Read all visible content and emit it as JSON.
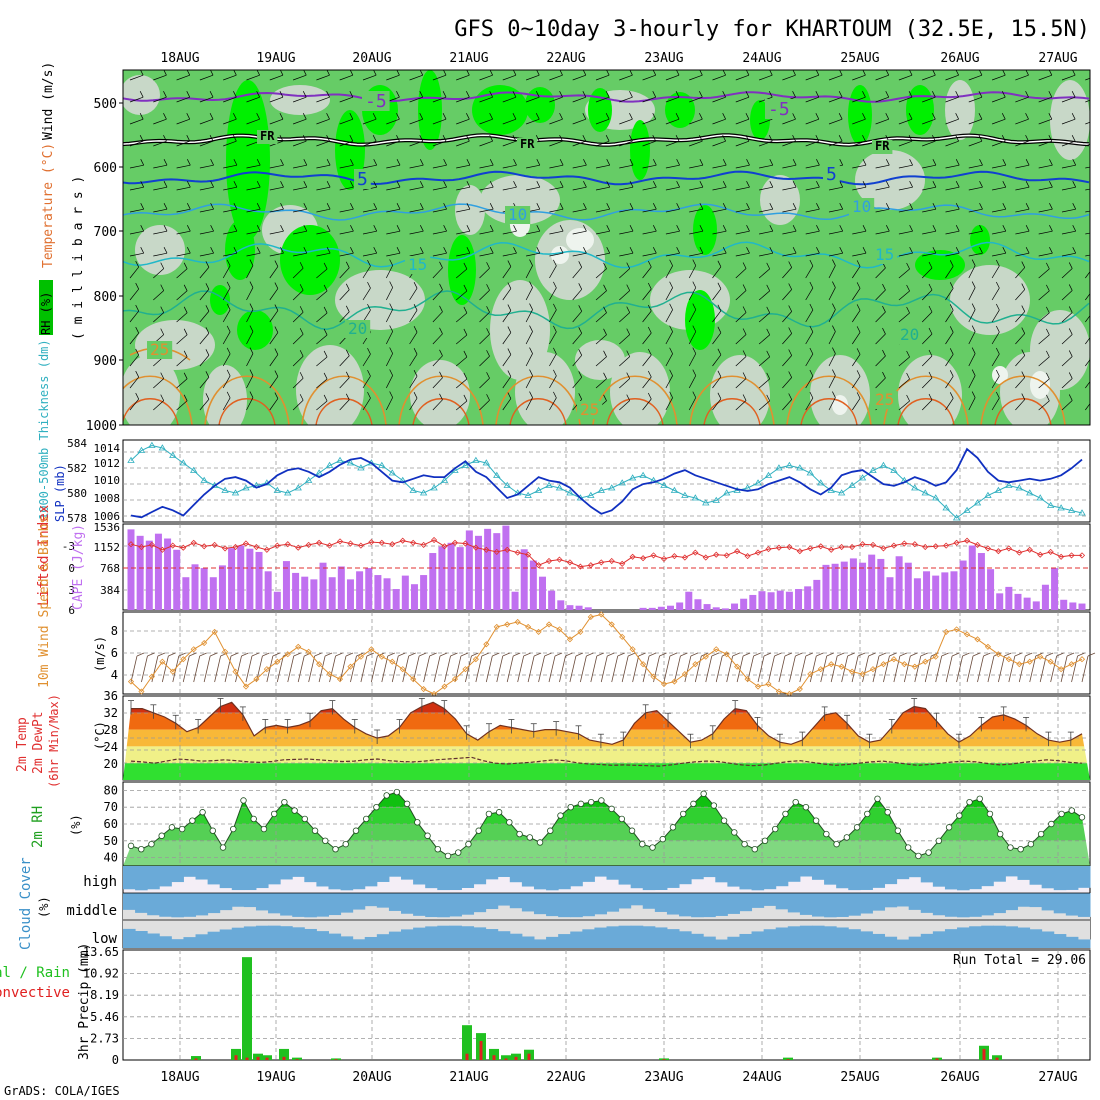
{
  "title": "GFS 0~10day 3-hourly for KHARTOUM (32.5E, 15.5N)",
  "credit": "GrADS: COLA/IGES",
  "run_total_label": "Run Total = 29.06",
  "date_labels": [
    "18AUG",
    "19AUG",
    "20AUG",
    "21AUG",
    "22AUG",
    "23AUG",
    "24AUG",
    "25AUG",
    "26AUG",
    "27AUG"
  ],
  "colors": {
    "rh_green": "#00f000",
    "rh_mid": "#66cc66",
    "rh_light": "#c8d8c8",
    "slp": "#1030c0",
    "thickness": "#30b0c0",
    "lifted_index": "#e03030",
    "cape": "#c070f0",
    "wind": "#e09030",
    "cloud": "#6aaad8",
    "precip_total": "#20c020",
    "precip_conv": "#e02020"
  },
  "panels": {
    "upper": {
      "ylabel_rh": "RH (%)",
      "ylabel_temp": "Temperature (°C)",
      "ylabel_wind": "Wind (m/s)",
      "ylabel_p": "( m i l l i b a r s )",
      "pressure_levels": [
        "500",
        "600",
        "700",
        "800",
        "900",
        "1000"
      ],
      "contour_labels": [
        {
          "text": "-5"
        },
        {
          "text": "-5"
        },
        {
          "text": "FR"
        },
        {
          "text": "FR"
        },
        {
          "text": "FR"
        },
        {
          "text": "5"
        },
        {
          "text": "5"
        },
        {
          "text": "10"
        },
        {
          "text": "10"
        },
        {
          "text": "15"
        },
        {
          "text": "15"
        },
        {
          "text": "20"
        },
        {
          "text": "20"
        },
        {
          "text": "25"
        },
        {
          "text": "25"
        },
        {
          "text": "25"
        }
      ]
    },
    "slp": {
      "ylabel_thk": "1000-500mb Thickness (dm)",
      "ylabel_slp": "SLP (mb)",
      "left_ticks": [
        "584",
        "582",
        "580",
        "578"
      ],
      "right_ticks": [
        "1014",
        "1012",
        "1010",
        "1008",
        "1006"
      ]
    },
    "cape": {
      "ylabel_li": "Lifted Index",
      "ylabel_cape": "CAPE (J/kg)",
      "left_ticks": [
        "-3",
        "0",
        "3",
        "6"
      ],
      "right_ticks": [
        "1536",
        "1152",
        "768",
        "384"
      ]
    },
    "wind": {
      "ylabel": "10m Wind Speed & Barbs",
      "unit": "(m/s)",
      "ticks": [
        "8",
        "6",
        "4"
      ]
    },
    "temp": {
      "ylabel1": "2m Temp",
      "ylabel2": "2m DewPt",
      "ylabel3": "(6hr Min/Max)",
      "unit": "(°C)",
      "ticks": [
        "36",
        "32",
        "28",
        "24",
        "20"
      ]
    },
    "rh": {
      "ylabel": "2m RH",
      "unit": "(%)",
      "ticks": [
        "80",
        "70",
        "60",
        "50",
        "40"
      ]
    },
    "cloud": {
      "ylabel": "Cloud Cover",
      "unit": "(%)",
      "levels": [
        "high",
        "middle",
        "low"
      ]
    },
    "precip": {
      "ylabel1": "Total / Rain",
      "ylabel2": "Convective",
      "ylabel3": "3hr Precip (mm)",
      "ticks": [
        "13.65",
        "10.92",
        "8.19",
        "5.46",
        "2.73",
        "0"
      ]
    }
  },
  "chart_data": {
    "type": "meteogram",
    "time_step_hours": 3,
    "slp_mb": [
      1006.2,
      1006.0,
      1006.6,
      1007.2,
      1006.8,
      1006.2,
      1007.4,
      1008.6,
      1009.6,
      1010.4,
      1010.6,
      1010.2,
      1009.4,
      1009.8,
      1010.8,
      1011.4,
      1011.6,
      1011.2,
      1010.6,
      1011.2,
      1012.0,
      1012.6,
      1012.8,
      1012.2,
      1011.2,
      1010.2,
      1010.0,
      1010.4,
      1010.8,
      1010.6,
      1010.6,
      1011.6,
      1012.4,
      1011.2,
      1010.6,
      1009.4,
      1008.2,
      1008.6,
      1009.6,
      1010.6,
      1010.2,
      1010.0,
      1009.4,
      1008.2,
      1007.2,
      1006.4,
      1006.8,
      1007.8,
      1009.2,
      1009.8,
      1010.0,
      1010.4,
      1011.0,
      1011.4,
      1010.8,
      1010.4,
      1010.0,
      1009.6,
      1009.2,
      1009.0,
      1009.2,
      1009.8,
      1010.2,
      1010.6,
      1010.0,
      1009.2,
      1008.6,
      1009.4,
      1010.8,
      1011.2,
      1011.4,
      1010.6,
      1009.8,
      1009.6,
      1010.0,
      1010.6,
      1010.2,
      1009.6,
      1010.0,
      1011.4,
      1013.8,
      1012.8,
      1011.2,
      1010.2,
      1010.0,
      1010.2,
      1010.4,
      1010.2,
      1010.4,
      1010.8,
      1011.6,
      1012.6
    ],
    "thickness_dm": [
      582.6,
      583.4,
      583.8,
      583.6,
      583.0,
      582.4,
      581.8,
      581.0,
      580.6,
      580.2,
      580.0,
      580.4,
      580.6,
      580.8,
      580.2,
      580.0,
      580.4,
      581.0,
      581.6,
      582.2,
      582.6,
      582.4,
      582.0,
      582.4,
      582.2,
      581.6,
      581.0,
      580.2,
      580.0,
      580.4,
      581.0,
      581.8,
      582.2,
      582.6,
      582.4,
      581.4,
      580.6,
      580.0,
      579.8,
      580.2,
      580.6,
      580.4,
      580.0,
      579.6,
      579.8,
      580.2,
      580.4,
      580.8,
      581.2,
      581.4,
      581.0,
      580.6,
      580.2,
      579.8,
      579.6,
      579.2,
      579.4,
      580.0,
      580.2,
      580.4,
      580.8,
      581.4,
      582.0,
      582.2,
      582.0,
      581.6,
      580.8,
      580.2,
      580.0,
      580.6,
      581.2,
      581.8,
      582.2,
      581.8,
      581.0,
      580.4,
      580.0,
      579.6,
      578.8,
      578.0,
      578.6,
      579.2,
      579.8,
      580.2,
      580.6,
      580.4,
      580.0,
      579.6,
      579.0,
      578.8,
      578.6,
      578.4
    ],
    "lifted_index": [
      -3.4,
      -3.0,
      -3.3,
      -2.6,
      -3.2,
      -2.9,
      -3.6,
      -3.1,
      -3.3,
      -2.8,
      -3.0,
      -3.5,
      -3.0,
      -2.6,
      -3.2,
      -3.4,
      -2.9,
      -3.3,
      -3.6,
      -3.2,
      -3.8,
      -3.5,
      -3.2,
      -3.7,
      -3.6,
      -3.4,
      -3.9,
      -3.6,
      -3.3,
      -4.0,
      -3.1,
      -3.6,
      -3.5,
      -2.9,
      -2.6,
      -2.3,
      -2.6,
      -2.2,
      -1.9,
      -0.4,
      -1.0,
      -1.2,
      -0.8,
      -0.2,
      -0.4,
      -0.8,
      -1.0,
      -0.6,
      -1.6,
      -1.4,
      -1.8,
      -1.3,
      -1.7,
      -1.5,
      -2.2,
      -1.5,
      -1.9,
      -1.8,
      -2.4,
      -1.7,
      -2.2,
      -2.7,
      -2.9,
      -3.0,
      -2.4,
      -2.8,
      -3.1,
      -2.6,
      -3.0,
      -3.0,
      -3.4,
      -3.3,
      -2.8,
      -3.2,
      -3.5,
      -3.4,
      -3.0,
      -3.1,
      -3.2,
      -3.6,
      -3.9,
      -3.3,
      -2.8,
      -2.4,
      -2.8,
      -2.2,
      -2.6,
      -1.9,
      -2.3,
      -1.6,
      -1.8,
      -1.8
    ],
    "cape_jkg": [
      1500,
      1380,
      1290,
      1420,
      1330,
      1120,
      610,
      850,
      780,
      610,
      830,
      1150,
      1200,
      1140,
      1080,
      720,
      340,
      910,
      690,
      620,
      570,
      880,
      610,
      810,
      570,
      720,
      780,
      650,
      590,
      390,
      640,
      480,
      650,
      1060,
      1180,
      1250,
      1170,
      1480,
      1380,
      1510,
      1430,
      1570,
      340,
      1130,
      920,
      620,
      360,
      180,
      90,
      80,
      50,
      0,
      0,
      0,
      0,
      0,
      40,
      40,
      60,
      80,
      140,
      340,
      200,
      110,
      50,
      30,
      120,
      210,
      280,
      350,
      330,
      360,
      340,
      390,
      440,
      560,
      840,
      860,
      900,
      960,
      880,
      1030,
      950,
      610,
      1000,
      880,
      590,
      720,
      640,
      700,
      720,
      920,
      1200,
      1060,
      760,
      310,
      430,
      300,
      230,
      160,
      470,
      780,
      190,
      140,
      120
    ],
    "wind_ms": [
      4.2,
      3.4,
      4.6,
      5.8,
      5.0,
      6.0,
      6.8,
      7.3,
      8.2,
      6.6,
      5.0,
      3.8,
      4.4,
      5.2,
      5.8,
      6.4,
      7.0,
      6.6,
      5.6,
      4.8,
      4.4,
      5.4,
      6.2,
      6.8,
      6.2,
      5.8,
      5.2,
      4.4,
      3.6,
      3.2,
      3.8,
      4.4,
      5.2,
      6.0,
      7.2,
      8.6,
      8.8,
      9.0,
      8.6,
      8.2,
      8.8,
      8.4,
      7.6,
      8.2,
      9.4,
      9.6,
      8.8,
      7.8,
      6.8,
      5.6,
      4.6,
      4.0,
      4.2,
      4.8,
      5.6,
      6.2,
      6.8,
      6.4,
      5.4,
      4.4,
      3.8,
      4.0,
      3.4,
      3.2,
      3.6,
      4.8,
      5.2,
      5.6,
      5.4,
      5.0,
      4.8,
      5.2,
      5.6,
      6.0,
      5.6,
      5.4,
      5.8,
      6.2,
      8.2,
      8.4,
      8.0,
      7.6,
      7.0,
      6.4,
      6.0,
      5.6,
      5.8,
      6.2,
      5.8,
      5.2,
      5.6,
      6.0
    ],
    "temp_c": [
      33,
      33,
      32,
      31,
      29.5,
      27.5,
      28.5,
      31,
      33.5,
      34.5,
      31.5,
      26.5,
      28.5,
      29,
      28.5,
      29,
      30,
      32.5,
      33,
      30.5,
      28.5,
      27,
      26,
      26.5,
      28.5,
      32,
      33.5,
      34.5,
      33,
      30.5,
      27,
      25.5,
      27.5,
      29,
      28.5,
      28,
      27.5,
      28,
      28,
      27.5,
      27,
      25.5,
      25,
      24.5,
      25.5,
      29.5,
      32,
      32.5,
      30,
      27.5,
      25,
      25.5,
      27,
      30.5,
      33,
      32.5,
      29,
      26.5,
      25,
      24.5,
      25.5,
      28.5,
      31.5,
      32,
      29.5,
      26.5,
      25,
      25.5,
      28.5,
      32,
      33.5,
      33,
      30,
      27,
      25,
      26.5,
      29,
      31,
      31.5,
      30.5,
      29,
      27,
      25.5,
      25,
      25.5,
      27
    ],
    "dewpoint_c": [
      20.5,
      20.3,
      20,
      20.5,
      21,
      20.8,
      20.5,
      20.6,
      20.8,
      20.6,
      20.3,
      20.2,
      20.4,
      20.8,
      20.9,
      21,
      20.8,
      20.6,
      20.4,
      20.5,
      20.8,
      21,
      20.6,
      20.4,
      20.3,
      20.5,
      20.8,
      21,
      21.2,
      21.4,
      20.6,
      20,
      19.8,
      20,
      20.2,
      20.5,
      20.8,
      20.6,
      20.1,
      19.8,
      19.7,
      19.5,
      19.6,
      19.5,
      19.4,
      19.3,
      19.6,
      20,
      20.3,
      20.5,
      20.4,
      20,
      19.6,
      19.4,
      19.6,
      20,
      20.4,
      20.6,
      20.2,
      19.8,
      19.5,
      19.7,
      20,
      20.3,
      20.5,
      20.2,
      19.8,
      19.5,
      19.7,
      20,
      20.3,
      20.5,
      20.3,
      19.9,
      19.6,
      19.8,
      20.2,
      20.5,
      20.8,
      20.6,
      20.2,
      20
    ],
    "rh_pct": [
      47,
      45,
      48,
      53,
      58,
      57,
      62,
      67,
      56,
      46,
      57,
      74,
      63,
      57,
      66,
      73,
      68,
      63,
      56,
      50,
      45,
      48,
      56,
      63,
      70,
      77,
      79,
      72,
      61,
      53,
      45,
      41,
      43,
      48,
      56,
      66,
      67,
      61,
      54,
      52,
      49,
      56,
      65,
      70,
      72,
      73,
      74,
      69,
      63,
      56,
      48,
      46,
      51,
      58,
      66,
      72,
      78,
      71,
      62,
      55,
      48,
      45,
      50,
      57,
      66,
      73,
      70,
      62,
      54,
      48,
      52,
      58,
      66,
      75,
      67,
      56,
      46,
      41,
      43,
      50,
      58,
      65,
      73,
      75,
      66,
      54,
      46,
      45,
      48,
      54,
      60,
      66,
      68,
      64
    ]
  }
}
